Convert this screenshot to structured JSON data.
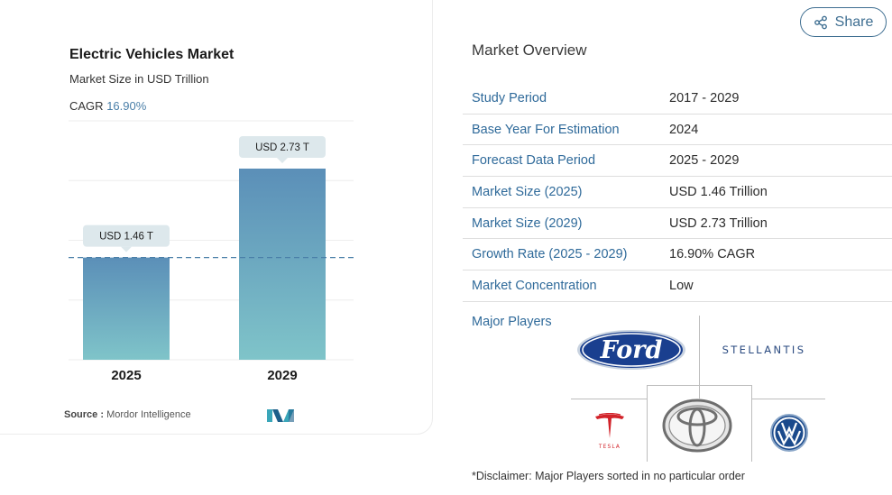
{
  "card": {
    "title": "Electric Vehicles Market",
    "subtitle": "Market Size in USD Trillion",
    "cagr_label": "CAGR",
    "cagr_value": "16.90%",
    "source_label": "Source :",
    "source_value": "Mordor Intelligence"
  },
  "chart_data": {
    "type": "bar",
    "title": "Electric Vehicles Market",
    "subtitle": "Market Size in USD Trillion",
    "categories": [
      "2025",
      "2029"
    ],
    "values": [
      1.46,
      2.73
    ],
    "data_labels": [
      "USD 1.46 T",
      "USD 2.73 T"
    ],
    "ylim": [
      0,
      2.73
    ],
    "reference_line": 1.46,
    "grid": true,
    "colors": {
      "bar_top": "#5b8fb8",
      "bar_bottom": "#7fc4c9",
      "label_bg": "#dde8ec",
      "dashed": "#4a7fa8"
    }
  },
  "share": {
    "label": "Share",
    "icon": "share-icon"
  },
  "overview": {
    "title": "Market Overview",
    "rows": [
      {
        "label": "Study Period",
        "value": "2017 - 2029"
      },
      {
        "label": "Base Year For Estimation",
        "value": "2024"
      },
      {
        "label": "Forecast Data Period",
        "value": "2025 - 2029"
      },
      {
        "label": "Market Size (2025)",
        "value": "USD 1.46 Trillion"
      },
      {
        "label": "Market Size (2029)",
        "value": "USD 2.73 Trillion"
      },
      {
        "label": "Growth Rate (2025 - 2029)",
        "value": "16.90% CAGR"
      },
      {
        "label": "Market Concentration",
        "value": "Low"
      }
    ]
  },
  "players": {
    "label": "Major Players",
    "ford": "Ford",
    "stellantis": "STELLANTIS",
    "tesla": "TESLA"
  },
  "disclaimer": "*Disclaimer: Major Players sorted in no particular order"
}
